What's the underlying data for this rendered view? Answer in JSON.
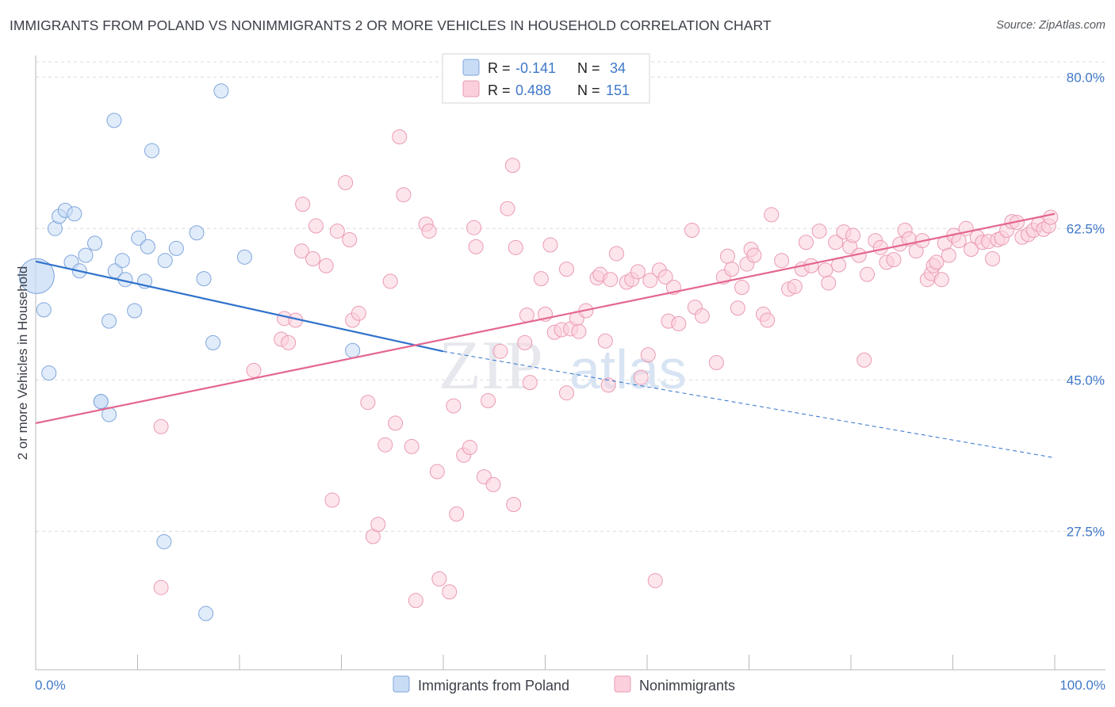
{
  "title": "IMMIGRANTS FROM POLAND VS NONIMMIGRANTS 2 OR MORE VEHICLES IN HOUSEHOLD CORRELATION CHART",
  "source": "Source: ZipAtlas.com",
  "watermark": {
    "left": "ZIP",
    "right": "atlas"
  },
  "legend_stats": {
    "r_label": "R =",
    "n_label": "N =",
    "rows": [
      {
        "r": "-0.141",
        "n": "34",
        "color": "#a9c6ef"
      },
      {
        "r": "0.488",
        "n": "151",
        "color": "#f5b5c8"
      }
    ]
  },
  "chart_data": {
    "type": "scatter",
    "title": "IMMIGRANTS FROM POLAND VS NONIMMIGRANTS 2 OR MORE VEHICLES IN HOUSEHOLD CORRELATION CHART",
    "xlabel": "",
    "ylabel": "2 or more Vehicles in Household",
    "xlim": [
      0,
      100
    ],
    "ylim": [
      11.5,
      82.5
    ],
    "x_tick_labels": [
      "0.0%",
      "100.0%"
    ],
    "y_ticks": [
      27.5,
      45.0,
      62.5,
      80.0
    ],
    "y_tick_labels": [
      "27.5%",
      "45.0%",
      "62.5%",
      "80.0%"
    ],
    "grid": true,
    "legend_position": "bottom-center",
    "colors": {
      "poland_fill": "#c9dcf5",
      "poland_edge": "#7fa6dc",
      "poland_line": "#2f72cc",
      "nonimm_fill": "#fbd0dc",
      "nonimm_edge": "#ea9bb3",
      "nonimm_line": "#e4668f",
      "tick_text": "#3f78c8",
      "grid": "#dcdcdc"
    },
    "series": [
      {
        "name": "Immigrants from Poland",
        "trend": {
          "x0": 0,
          "y0": 58.7,
          "x1": 40,
          "y1": 48.3,
          "dash_to_x": 100,
          "dash_to_y": 36.0
        },
        "points": [
          [
            0.1,
            57.0,
            1
          ],
          [
            0.8,
            53.1,
            0
          ],
          [
            1.3,
            45.8,
            0
          ],
          [
            1.9,
            62.5,
            0
          ],
          [
            2.3,
            63.9,
            0
          ],
          [
            2.9,
            64.6,
            0
          ],
          [
            3.5,
            58.6,
            0
          ],
          [
            3.8,
            64.2,
            0
          ],
          [
            4.3,
            57.6,
            0
          ],
          [
            4.9,
            59.4,
            0
          ],
          [
            5.8,
            60.8,
            0
          ],
          [
            6.4,
            42.5,
            0
          ],
          [
            6.4,
            42.5,
            0
          ],
          [
            7.2,
            41.0,
            0
          ],
          [
            7.2,
            51.8,
            0
          ],
          [
            7.7,
            75.0,
            0
          ],
          [
            7.8,
            57.6,
            0
          ],
          [
            8.5,
            58.8,
            0
          ],
          [
            8.8,
            56.6,
            0
          ],
          [
            9.7,
            53.0,
            0
          ],
          [
            10.1,
            61.4,
            0
          ],
          [
            10.7,
            56.4,
            0
          ],
          [
            11.0,
            60.4,
            0
          ],
          [
            11.4,
            71.5,
            0
          ],
          [
            12.7,
            58.8,
            0
          ],
          [
            13.8,
            60.2,
            0
          ],
          [
            15.8,
            62.0,
            0
          ],
          [
            16.5,
            56.7,
            0
          ],
          [
            17.4,
            49.3,
            0
          ],
          [
            16.7,
            18.0,
            0
          ],
          [
            18.2,
            78.4,
            0
          ],
          [
            20.5,
            59.2,
            0
          ],
          [
            31.1,
            48.4,
            0
          ],
          [
            12.6,
            26.3,
            0
          ]
        ]
      },
      {
        "name": "Nonimmigrants",
        "trend": {
          "x0": 0,
          "y0": 40.0,
          "x1": 100,
          "y1": 64.2
        },
        "points": [
          [
            12.3,
            39.6,
            0
          ],
          [
            12.3,
            21.0,
            0
          ],
          [
            21.4,
            46.1,
            0
          ],
          [
            24.1,
            49.7,
            0
          ],
          [
            24.4,
            52.1,
            0
          ],
          [
            24.8,
            49.3,
            0
          ],
          [
            25.5,
            51.9,
            0
          ],
          [
            26.1,
            59.9,
            0
          ],
          [
            26.2,
            65.3,
            0
          ],
          [
            27.2,
            59.0,
            0
          ],
          [
            27.5,
            62.8,
            0
          ],
          [
            28.5,
            58.2,
            0
          ],
          [
            29.1,
            31.1,
            0
          ],
          [
            29.6,
            62.2,
            0
          ],
          [
            30.4,
            67.8,
            0
          ],
          [
            30.8,
            61.2,
            0
          ],
          [
            31.1,
            51.9,
            0
          ],
          [
            31.7,
            52.7,
            0
          ],
          [
            32.6,
            42.4,
            0
          ],
          [
            33.1,
            26.9,
            0
          ],
          [
            33.6,
            28.3,
            0
          ],
          [
            34.3,
            37.5,
            0
          ],
          [
            34.8,
            56.4,
            0
          ],
          [
            35.3,
            40.0,
            0
          ],
          [
            35.7,
            73.1,
            0
          ],
          [
            36.1,
            66.4,
            0
          ],
          [
            36.9,
            37.3,
            0
          ],
          [
            37.3,
            19.5,
            0
          ],
          [
            38.3,
            63.0,
            0
          ],
          [
            38.6,
            62.2,
            0
          ],
          [
            39.4,
            34.4,
            0
          ],
          [
            39.6,
            22.0,
            0
          ],
          [
            40.6,
            20.5,
            0
          ],
          [
            41.0,
            42.0,
            0
          ],
          [
            41.3,
            29.5,
            0
          ],
          [
            42.0,
            36.3,
            0
          ],
          [
            42.6,
            37.2,
            0
          ],
          [
            43.0,
            62.6,
            0
          ],
          [
            43.2,
            60.4,
            0
          ],
          [
            44.0,
            33.8,
            0
          ],
          [
            44.4,
            42.6,
            0
          ],
          [
            44.9,
            32.9,
            0
          ],
          [
            45.6,
            48.3,
            0
          ],
          [
            46.3,
            64.8,
            0
          ],
          [
            46.8,
            69.8,
            0
          ],
          [
            46.9,
            30.6,
            0
          ],
          [
            47.1,
            60.3,
            0
          ],
          [
            48.0,
            49.3,
            0
          ],
          [
            48.2,
            52.5,
            0
          ],
          [
            48.5,
            44.7,
            0
          ],
          [
            49.6,
            56.7,
            0
          ],
          [
            50.0,
            52.6,
            0
          ],
          [
            50.5,
            60.6,
            0
          ],
          [
            50.9,
            50.5,
            0
          ],
          [
            51.6,
            50.8,
            0
          ],
          [
            52.1,
            57.8,
            0
          ],
          [
            52.1,
            43.5,
            0
          ],
          [
            52.5,
            50.9,
            0
          ],
          [
            53.1,
            52.1,
            0
          ],
          [
            53.3,
            50.6,
            0
          ],
          [
            54.0,
            53.0,
            0
          ],
          [
            55.1,
            56.8,
            0
          ],
          [
            55.4,
            57.2,
            0
          ],
          [
            55.9,
            49.5,
            0
          ],
          [
            56.2,
            44.4,
            0
          ],
          [
            56.4,
            56.6,
            0
          ],
          [
            57.0,
            59.6,
            0
          ],
          [
            58.0,
            56.3,
            0
          ],
          [
            58.5,
            56.6,
            0
          ],
          [
            59.1,
            57.5,
            0
          ],
          [
            59.4,
            45.3,
            0
          ],
          [
            60.1,
            47.9,
            0
          ],
          [
            60.3,
            56.5,
            0
          ],
          [
            60.8,
            21.8,
            0
          ],
          [
            61.2,
            57.7,
            0
          ],
          [
            61.8,
            56.9,
            0
          ],
          [
            62.1,
            51.8,
            0
          ],
          [
            62.6,
            55.7,
            0
          ],
          [
            63.1,
            51.5,
            0
          ],
          [
            64.4,
            62.3,
            0
          ],
          [
            64.7,
            53.4,
            0
          ],
          [
            65.4,
            52.4,
            0
          ],
          [
            66.8,
            47.0,
            0
          ],
          [
            67.5,
            56.9,
            0
          ],
          [
            67.9,
            59.3,
            0
          ],
          [
            68.3,
            57.8,
            0
          ],
          [
            68.9,
            53.3,
            0
          ],
          [
            69.3,
            55.7,
            0
          ],
          [
            69.8,
            58.4,
            0
          ],
          [
            70.2,
            60.1,
            0
          ],
          [
            70.5,
            59.4,
            0
          ],
          [
            71.4,
            52.6,
            0
          ],
          [
            71.8,
            51.9,
            0
          ],
          [
            72.2,
            64.1,
            0
          ],
          [
            73.2,
            58.8,
            0
          ],
          [
            73.9,
            55.5,
            0
          ],
          [
            74.5,
            55.8,
            0
          ],
          [
            75.2,
            57.8,
            0
          ],
          [
            75.6,
            60.9,
            0
          ],
          [
            76.1,
            58.2,
            0
          ],
          [
            76.9,
            62.2,
            0
          ],
          [
            77.5,
            57.7,
            0
          ],
          [
            77.8,
            56.2,
            0
          ],
          [
            78.5,
            60.9,
            0
          ],
          [
            78.8,
            58.3,
            0
          ],
          [
            79.3,
            62.1,
            0
          ],
          [
            79.9,
            60.4,
            0
          ],
          [
            80.2,
            61.7,
            0
          ],
          [
            80.8,
            59.4,
            0
          ],
          [
            81.3,
            47.3,
            0
          ],
          [
            81.6,
            57.2,
            0
          ],
          [
            82.4,
            61.1,
            0
          ],
          [
            82.9,
            60.3,
            0
          ],
          [
            83.5,
            58.6,
            0
          ],
          [
            84.2,
            58.9,
            0
          ],
          [
            84.8,
            60.7,
            0
          ],
          [
            85.3,
            62.3,
            0
          ],
          [
            85.7,
            61.3,
            0
          ],
          [
            86.4,
            59.9,
            0
          ],
          [
            87.0,
            61.1,
            0
          ],
          [
            87.5,
            56.6,
            0
          ],
          [
            87.9,
            57.3,
            0
          ],
          [
            88.1,
            58.2,
            0
          ],
          [
            88.4,
            58.6,
            0
          ],
          [
            88.9,
            56.6,
            0
          ],
          [
            89.2,
            60.8,
            0
          ],
          [
            89.6,
            59.4,
            0
          ],
          [
            90.1,
            61.7,
            0
          ],
          [
            90.6,
            61.1,
            0
          ],
          [
            91.3,
            62.5,
            0
          ],
          [
            91.8,
            60.1,
            0
          ],
          [
            92.4,
            61.5,
            0
          ],
          [
            92.9,
            60.9,
            0
          ],
          [
            93.5,
            61.0,
            0
          ],
          [
            93.9,
            59.0,
            0
          ],
          [
            94.4,
            61.2,
            0
          ],
          [
            94.8,
            61.4,
            0
          ],
          [
            95.3,
            62.3,
            0
          ],
          [
            95.8,
            63.3,
            0
          ],
          [
            96.3,
            63.2,
            0
          ],
          [
            96.8,
            61.5,
            0
          ],
          [
            97.4,
            61.8,
            0
          ],
          [
            97.9,
            62.3,
            0
          ],
          [
            98.4,
            63.0,
            0
          ],
          [
            98.9,
            62.4,
            0
          ],
          [
            99.4,
            62.8,
            0
          ],
          [
            99.6,
            63.8,
            0
          ]
        ]
      }
    ]
  }
}
